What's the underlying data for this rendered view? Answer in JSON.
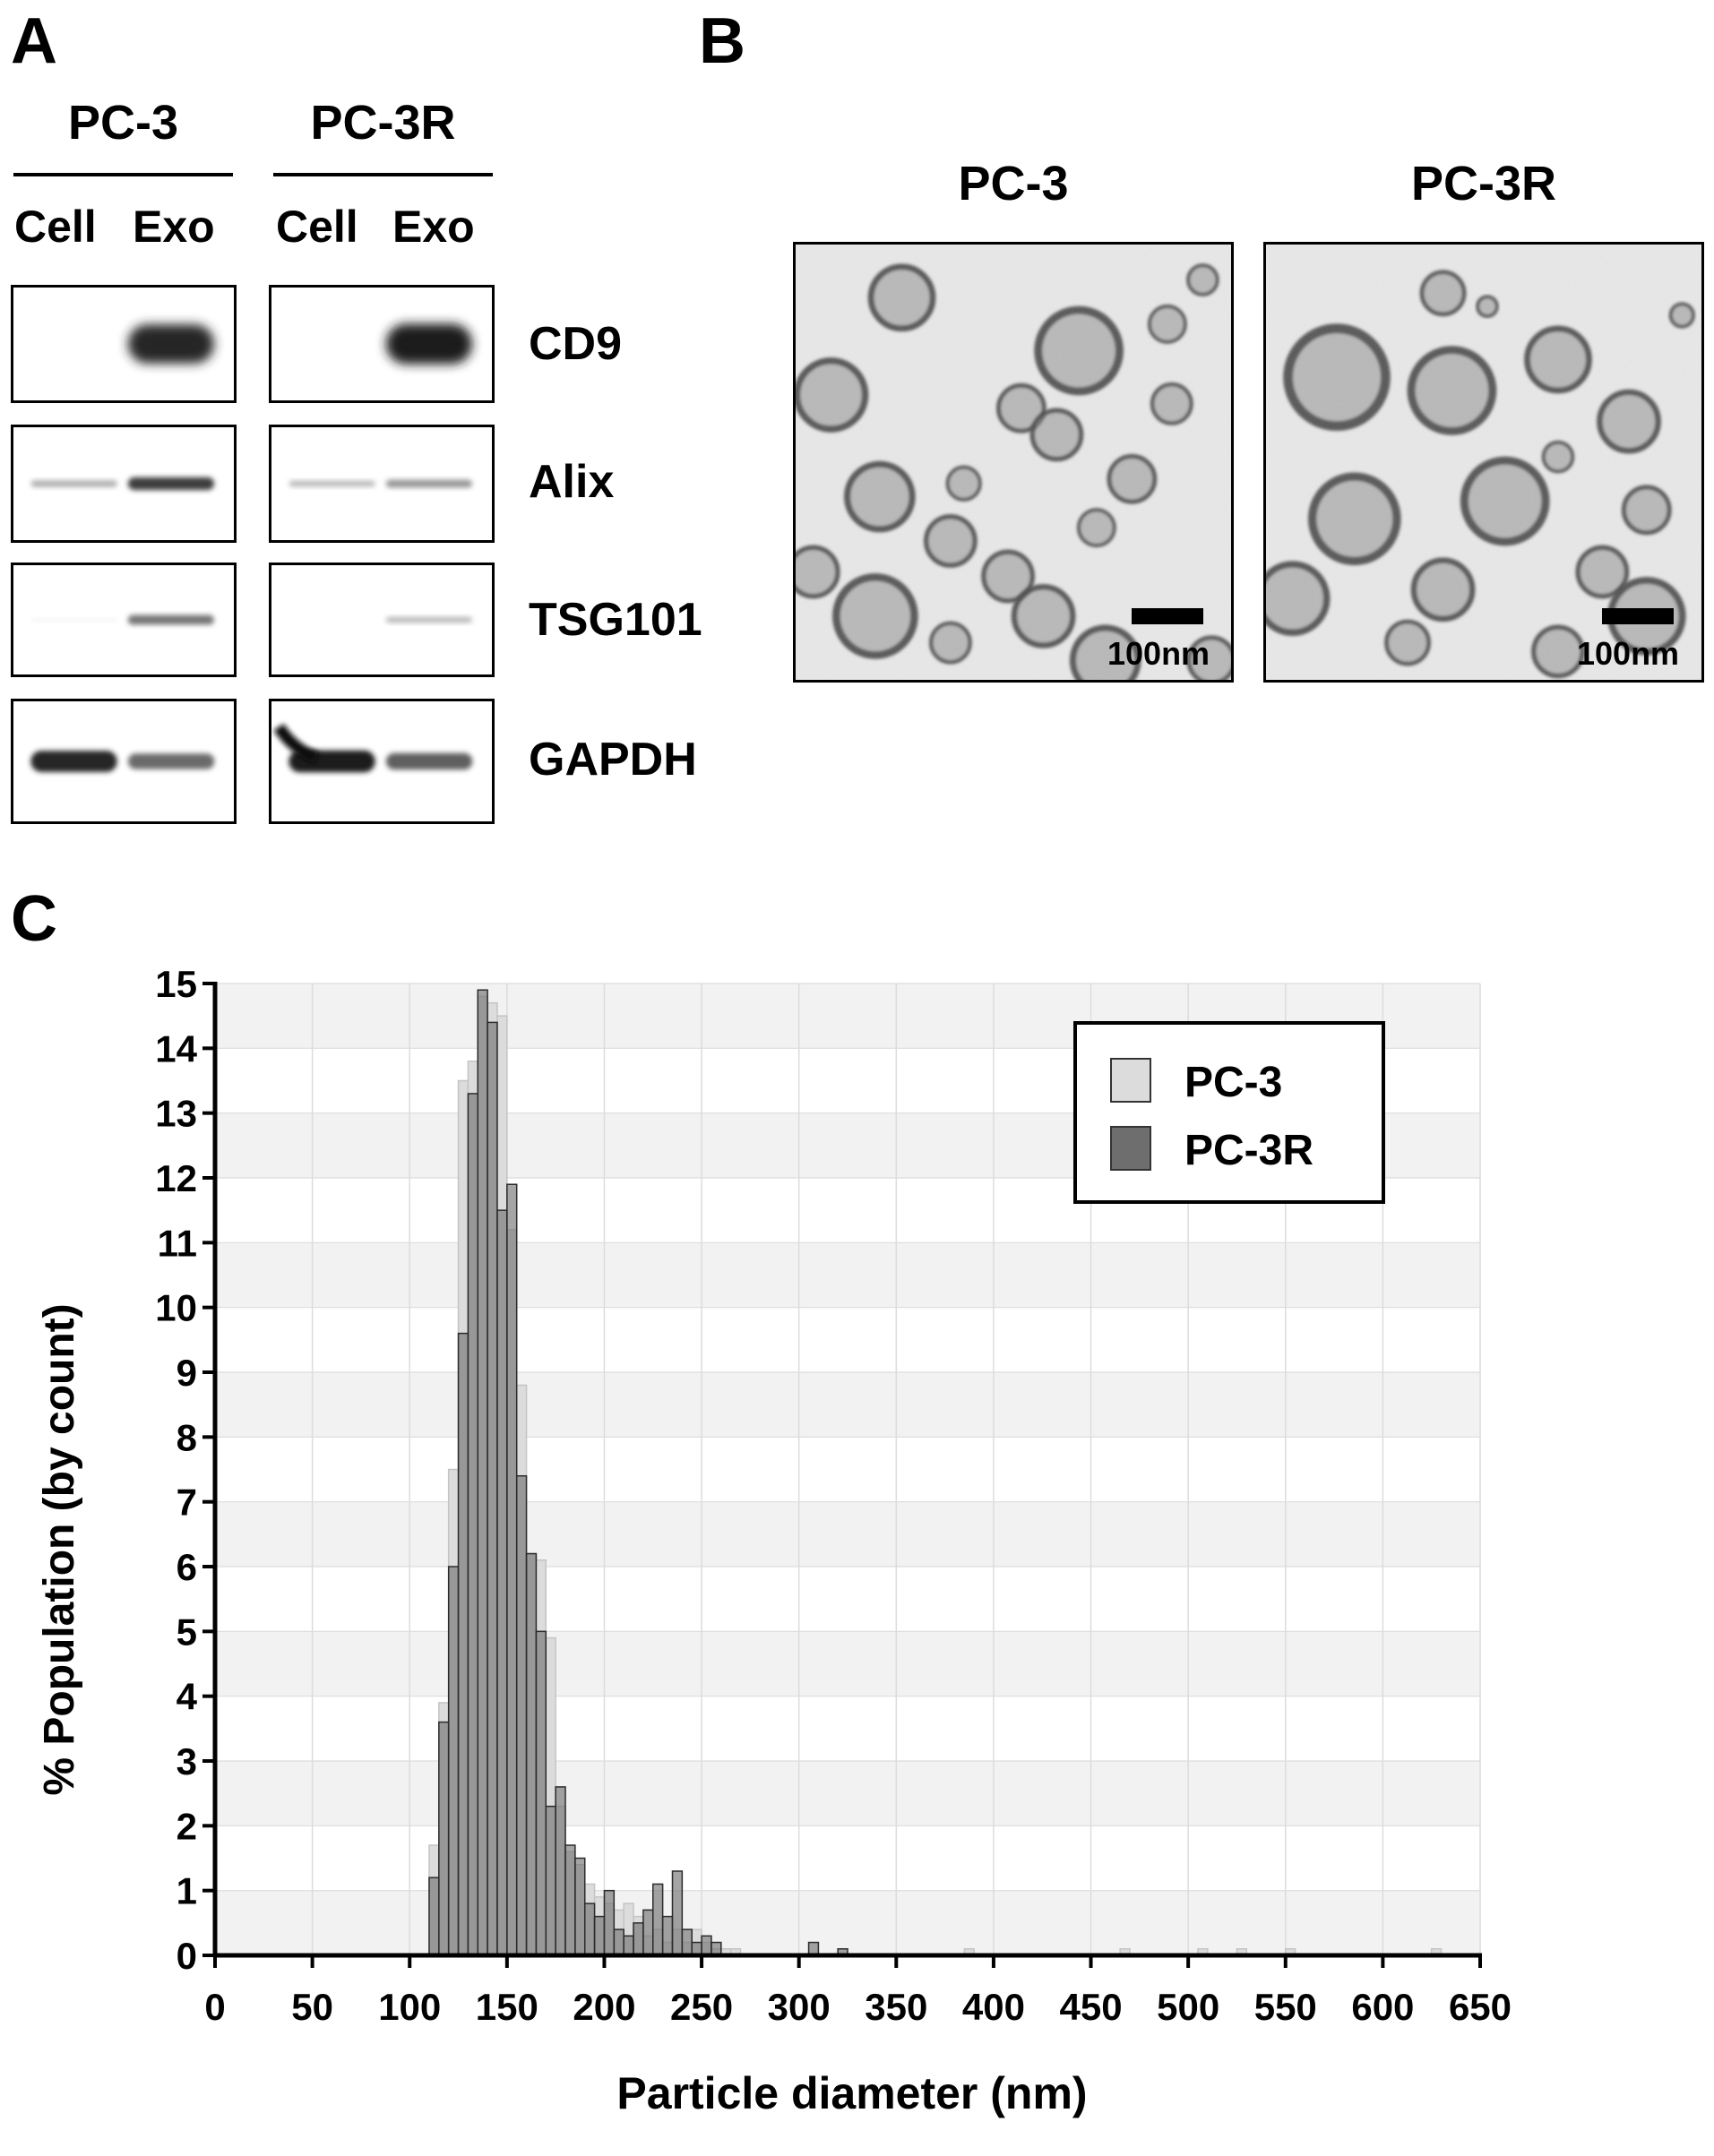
{
  "panel_a": {
    "label": "A",
    "groups": [
      {
        "name": "PC-3",
        "lanes": [
          "Cell",
          "Exo"
        ]
      },
      {
        "name": "PC-3R",
        "lanes": [
          "Cell",
          "Exo"
        ]
      }
    ],
    "proteins": [
      "CD9",
      "Alix",
      "TSG101",
      "GAPDH"
    ],
    "band_intensity": {
      "CD9": {
        "PC-3": [
          0.0,
          0.95
        ],
        "PC-3R": [
          0.0,
          0.98
        ]
      },
      "Alix": {
        "PC-3": [
          0.35,
          0.85
        ],
        "PC-3R": [
          0.3,
          0.45
        ]
      },
      "TSG101": {
        "PC-3": [
          0.05,
          0.6
        ],
        "PC-3R": [
          0.0,
          0.3
        ]
      },
      "GAPDH": {
        "PC-3": [
          0.95,
          0.65
        ],
        "PC-3R": [
          0.98,
          0.7
        ]
      }
    }
  },
  "panel_b": {
    "label": "B",
    "images": [
      {
        "title": "PC-3",
        "scale": "100nm"
      },
      {
        "title": "PC-3R",
        "scale": "100nm"
      }
    ]
  },
  "panel_c": {
    "label": "C",
    "colors": {
      "PC-3": "#dcdcdc",
      "PC-3R": "#6e6e6e",
      "overlap": "#9a9a9a",
      "band": "#f2f2f2",
      "grid": "#dcdcdc"
    },
    "chart_data": {
      "type": "bar",
      "xlabel": "Particle diameter (nm)",
      "ylabel": "% Population (by count)",
      "xlim": [
        0,
        650
      ],
      "ylim": [
        0,
        15
      ],
      "xticks": [
        0,
        50,
        100,
        150,
        200,
        250,
        300,
        350,
        400,
        450,
        500,
        550,
        600,
        650
      ],
      "yticks": [
        0,
        1,
        2,
        3,
        4,
        5,
        6,
        7,
        8,
        9,
        10,
        11,
        12,
        13,
        14,
        15
      ],
      "grid": true,
      "legend_position": "top-right",
      "bin_width_nm": 5,
      "series": [
        {
          "name": "PC-3",
          "x": [
            110,
            115,
            120,
            125,
            130,
            135,
            140,
            145,
            150,
            155,
            160,
            165,
            170,
            175,
            180,
            185,
            190,
            195,
            200,
            205,
            210,
            215,
            220,
            225,
            230,
            235,
            240,
            245,
            250,
            255,
            260,
            265,
            385,
            465,
            505,
            525,
            550,
            625
          ],
          "values": [
            1.7,
            3.9,
            7.5,
            13.5,
            13.8,
            14.8,
            14.7,
            14.5,
            11.2,
            8.8,
            6.2,
            6.1,
            4.9,
            2.3,
            1.6,
            1.4,
            1.1,
            0.9,
            0.8,
            0.7,
            0.8,
            0.6,
            0.3,
            0.4,
            0.2,
            0.4,
            0.2,
            0.4,
            0.2,
            0.1,
            0.1,
            0.1,
            0.1,
            0.1,
            0.1,
            0.1,
            0.1,
            0.1
          ]
        },
        {
          "name": "PC-3R",
          "x": [
            110,
            115,
            120,
            125,
            130,
            135,
            140,
            145,
            150,
            155,
            160,
            165,
            170,
            175,
            180,
            185,
            190,
            195,
            200,
            205,
            210,
            215,
            220,
            225,
            230,
            235,
            240,
            245,
            250,
            255,
            260,
            265,
            305,
            320
          ],
          "values": [
            1.2,
            3.6,
            6.0,
            9.6,
            13.3,
            14.9,
            14.4,
            11.5,
            11.9,
            7.4,
            6.2,
            5.0,
            2.3,
            2.6,
            1.7,
            1.5,
            0.8,
            0.6,
            1.0,
            0.4,
            0.3,
            0.5,
            0.7,
            1.1,
            0.6,
            1.3,
            0.4,
            0.2,
            0.3,
            0.2,
            0.0,
            0.0,
            0.2,
            0.1
          ]
        }
      ]
    }
  }
}
